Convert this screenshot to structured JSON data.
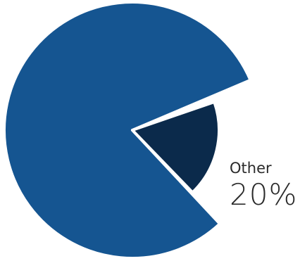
{
  "chart_data": {
    "type": "pie",
    "slices": [
      {
        "label": "",
        "value": 80,
        "color": "#155591"
      },
      {
        "label": "Other",
        "value": 20,
        "color": "#0b2a4b"
      }
    ],
    "annotation": {
      "label": "Other",
      "value_text": "20%"
    },
    "legend": "none"
  }
}
